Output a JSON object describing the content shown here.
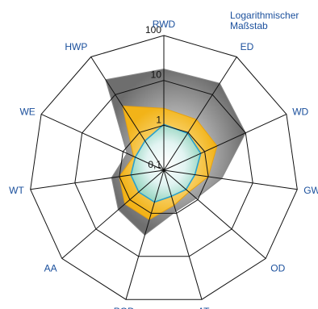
{
  "note": {
    "line1": "Logarithmischer",
    "line2": "Maßstab"
  },
  "colors": {
    "text": "#1a4f9c",
    "grid": "#111111",
    "gray": "#777777",
    "yellow": "#f2b318",
    "blue": "#2aa0cc"
  },
  "chart_data": {
    "type": "radar",
    "scale": "log",
    "rlim": [
      0.1,
      100
    ],
    "ring_ticks": [
      {
        "value": 0.1,
        "label": "0,1"
      },
      {
        "value": 1,
        "label": "1"
      },
      {
        "value": 10,
        "label": "10"
      },
      {
        "value": 100,
        "label": "100"
      }
    ],
    "categories": [
      "RWD",
      "ED",
      "WD",
      "GW",
      "OD",
      "AT",
      "POD",
      "AA",
      "WT",
      "WE",
      "HWP"
    ],
    "series": [
      {
        "color": "gray",
        "values": [
          18,
          20,
          10,
          2.0,
          0.9,
          0.9,
          3.2,
          2.2,
          1.5,
          0.8,
          25
        ]
      },
      {
        "color": "yellow",
        "values": [
          2.4,
          2.2,
          2.0,
          1.0,
          0.55,
          0.65,
          1.4,
          1.4,
          1.0,
          0.55,
          5.0
        ]
      },
      {
        "color": "blue",
        "values": [
          1.05,
          0.95,
          0.8,
          0.5,
          0.45,
          0.4,
          0.55,
          0.55,
          0.55,
          0.5,
          0.6
        ]
      }
    ]
  }
}
